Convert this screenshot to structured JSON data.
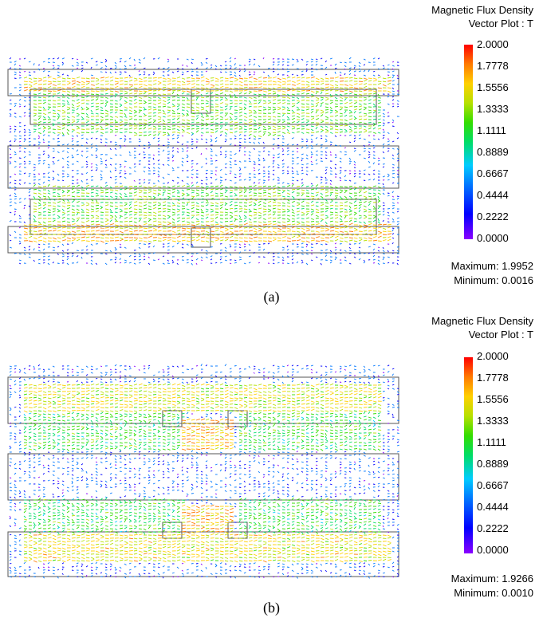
{
  "panels": [
    {
      "id": "a",
      "legend_title_line1": "Magnetic Flux Density",
      "legend_title_line2": "Vector Plot : T",
      "ticks": [
        "2.0000",
        "1.7778",
        "1.5556",
        "1.3333",
        "1.1111",
        "0.8889",
        "0.6667",
        "0.4444",
        "0.2222",
        "0.0000"
      ],
      "maximum": "Maximum: 1.9952",
      "minimum": "Minimum: 0.0016",
      "caption": "(a)"
    },
    {
      "id": "b",
      "legend_title_line1": "Magnetic Flux Density",
      "legend_title_line2": "Vector Plot : T",
      "ticks": [
        "2.0000",
        "1.7778",
        "1.5556",
        "1.3333",
        "1.1111",
        "0.8889",
        "0.6667",
        "0.4444",
        "0.2222",
        "0.0000"
      ],
      "maximum": "Maximum: 1.9266",
      "minimum": "Minimum: 0.0010",
      "caption": "(b)"
    }
  ],
  "colors": {
    "background": "#ffffff",
    "outline": "#555555",
    "scale": [
      "#8a00ff",
      "#0000ff",
      "#0077ff",
      "#00ccff",
      "#00dd66",
      "#33dd00",
      "#b6e000",
      "#ffd000",
      "#ff7a00",
      "#ff0000"
    ]
  }
}
